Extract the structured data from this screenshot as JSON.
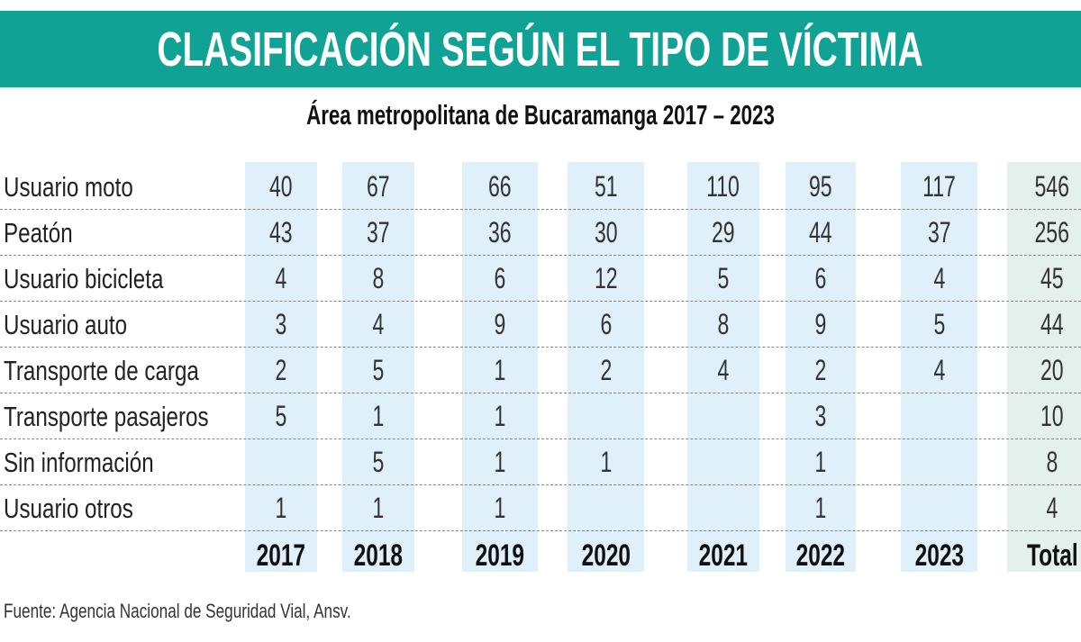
{
  "title": "CLASIFICACIÓN SEGÚN EL TIPO DE VÍCTIMA",
  "subtitle": "Área metropolitana de Bucaramanga 2017 – 2023",
  "footer": "Fuente: Agencia Nacional de Seguridad Vial, Ansv.",
  "colors": {
    "title_band": "#10a395",
    "year_column": "#dff0fa",
    "total_column": "#e3f0ec"
  },
  "chart_data": {
    "type": "table",
    "columns": [
      "2017",
      "2018",
      "2019",
      "2020",
      "2021",
      "2022",
      "2023",
      "Total"
    ],
    "rows": [
      {
        "label": "Usuario moto",
        "values": [
          "40",
          "67",
          "66",
          "51",
          "110",
          "95",
          "117",
          "546"
        ]
      },
      {
        "label": "Peatón",
        "values": [
          "43",
          "37",
          "36",
          "30",
          "29",
          "44",
          "37",
          "256"
        ]
      },
      {
        "label": "Usuario bicicleta",
        "values": [
          "4",
          "8",
          "6",
          "12",
          "5",
          "6",
          "4",
          "45"
        ]
      },
      {
        "label": "Usuario auto",
        "values": [
          "3",
          "4",
          "9",
          "6",
          "8",
          "9",
          "5",
          "44"
        ]
      },
      {
        "label": "Transporte de carga",
        "values": [
          "2",
          "5",
          "1",
          "2",
          "4",
          "2",
          "4",
          "20"
        ]
      },
      {
        "label": "Transporte pasajeros",
        "values": [
          "5",
          "1",
          "1",
          "",
          "",
          "3",
          "",
          "10"
        ]
      },
      {
        "label": "Sin información",
        "values": [
          "",
          "5",
          "1",
          "1",
          "",
          "1",
          "",
          "8"
        ]
      },
      {
        "label": "Usuario otros",
        "values": [
          "1",
          "1",
          "1",
          "",
          "",
          "1",
          "",
          "4"
        ]
      }
    ]
  }
}
